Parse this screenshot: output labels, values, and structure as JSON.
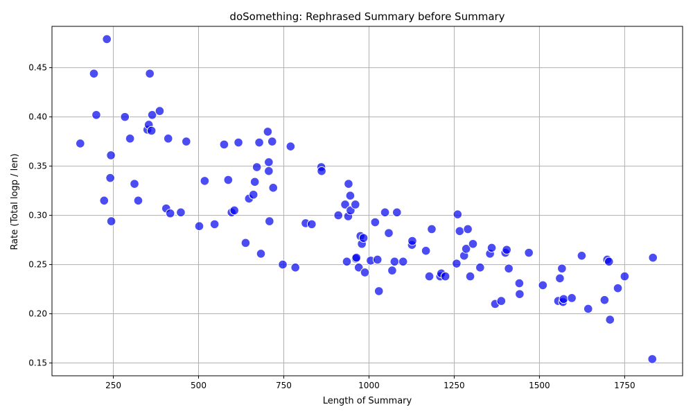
{
  "chart_data": {
    "type": "scatter",
    "title": "doSomething: Rephrased Summary before Summary",
    "xlabel": "Length of Summary",
    "ylabel": "Rate (Total logp / len)",
    "xlim": [
      70,
      1920
    ],
    "ylim": [
      0.137,
      0.492
    ],
    "xticks": [
      250,
      500,
      750,
      1000,
      1250,
      1500,
      1750
    ],
    "yticks": [
      0.15,
      0.2,
      0.25,
      0.3,
      0.35,
      0.4,
      0.45
    ],
    "xtick_labels": [
      "250",
      "500",
      "750",
      "1000",
      "1250",
      "1500",
      "1750"
    ],
    "ytick_labels": [
      "0.15",
      "0.20",
      "0.25",
      "0.30",
      "0.35",
      "0.40",
      "0.45"
    ],
    "grid": true,
    "marker_color": "#0000ee",
    "series": [
      {
        "points": [
          [
            153,
            0.373
          ],
          [
            193,
            0.444
          ],
          [
            200,
            0.402
          ],
          [
            223,
            0.315
          ],
          [
            231,
            0.479
          ],
          [
            241,
            0.338
          ],
          [
            243,
            0.361
          ],
          [
            244,
            0.294
          ],
          [
            284,
            0.4
          ],
          [
            299,
            0.378
          ],
          [
            312,
            0.332
          ],
          [
            323,
            0.315
          ],
          [
            350,
            0.387
          ],
          [
            354,
            0.392
          ],
          [
            357,
            0.444
          ],
          [
            362,
            0.386
          ],
          [
            364,
            0.402
          ],
          [
            386,
            0.406
          ],
          [
            405,
            0.307
          ],
          [
            411,
            0.378
          ],
          [
            417,
            0.302
          ],
          [
            448,
            0.303
          ],
          [
            464,
            0.375
          ],
          [
            502,
            0.289
          ],
          [
            518,
            0.335
          ],
          [
            547,
            0.291
          ],
          [
            575,
            0.372
          ],
          [
            587,
            0.336
          ],
          [
            597,
            0.303
          ],
          [
            605,
            0.305
          ],
          [
            617,
            0.374
          ],
          [
            638,
            0.272
          ],
          [
            648,
            0.317
          ],
          [
            661,
            0.321
          ],
          [
            665,
            0.334
          ],
          [
            671,
            0.349
          ],
          [
            678,
            0.374
          ],
          [
            683,
            0.261
          ],
          [
            703,
            0.385
          ],
          [
            706,
            0.354
          ],
          [
            706,
            0.345
          ],
          [
            708,
            0.294
          ],
          [
            716,
            0.375
          ],
          [
            719,
            0.328
          ],
          [
            747,
            0.25
          ],
          [
            770,
            0.37
          ],
          [
            784,
            0.247
          ],
          [
            814,
            0.292
          ],
          [
            832,
            0.291
          ],
          [
            860,
            0.349
          ],
          [
            861,
            0.345
          ],
          [
            910,
            0.3
          ],
          [
            930,
            0.311
          ],
          [
            935,
            0.253
          ],
          [
            939,
            0.299
          ],
          [
            940,
            0.332
          ],
          [
            945,
            0.32
          ],
          [
            946,
            0.305
          ],
          [
            960,
            0.311
          ],
          [
            961,
            0.256
          ],
          [
            963,
            0.257
          ],
          [
            970,
            0.247
          ],
          [
            975,
            0.279
          ],
          [
            979,
            0.271
          ],
          [
            984,
            0.277
          ],
          [
            988,
            0.242
          ],
          [
            1005,
            0.254
          ],
          [
            1018,
            0.293
          ],
          [
            1025,
            0.255
          ],
          [
            1029,
            0.223
          ],
          [
            1047,
            0.303
          ],
          [
            1058,
            0.282
          ],
          [
            1068,
            0.244
          ],
          [
            1075,
            0.253
          ],
          [
            1082,
            0.303
          ],
          [
            1100,
            0.253
          ],
          [
            1126,
            0.27
          ],
          [
            1127,
            0.274
          ],
          [
            1167,
            0.264
          ],
          [
            1177,
            0.238
          ],
          [
            1184,
            0.286
          ],
          [
            1209,
            0.238
          ],
          [
            1212,
            0.241
          ],
          [
            1224,
            0.238
          ],
          [
            1257,
            0.251
          ],
          [
            1260,
            0.301
          ],
          [
            1266,
            0.284
          ],
          [
            1279,
            0.259
          ],
          [
            1285,
            0.266
          ],
          [
            1290,
            0.286
          ],
          [
            1297,
            0.238
          ],
          [
            1305,
            0.271
          ],
          [
            1326,
            0.247
          ],
          [
            1355,
            0.261
          ],
          [
            1360,
            0.267
          ],
          [
            1370,
            0.21
          ],
          [
            1388,
            0.213
          ],
          [
            1400,
            0.262
          ],
          [
            1404,
            0.265
          ],
          [
            1410,
            0.246
          ],
          [
            1441,
            0.231
          ],
          [
            1442,
            0.22
          ],
          [
            1469,
            0.262
          ],
          [
            1510,
            0.229
          ],
          [
            1555,
            0.213
          ],
          [
            1560,
            0.236
          ],
          [
            1566,
            0.246
          ],
          [
            1569,
            0.212
          ],
          [
            1571,
            0.215
          ],
          [
            1595,
            0.216
          ],
          [
            1624,
            0.259
          ],
          [
            1643,
            0.205
          ],
          [
            1691,
            0.214
          ],
          [
            1699,
            0.255
          ],
          [
            1704,
            0.253
          ],
          [
            1707,
            0.194
          ],
          [
            1730,
            0.226
          ],
          [
            1750,
            0.238
          ],
          [
            1831,
            0.154
          ],
          [
            1833,
            0.257
          ]
        ]
      }
    ]
  }
}
